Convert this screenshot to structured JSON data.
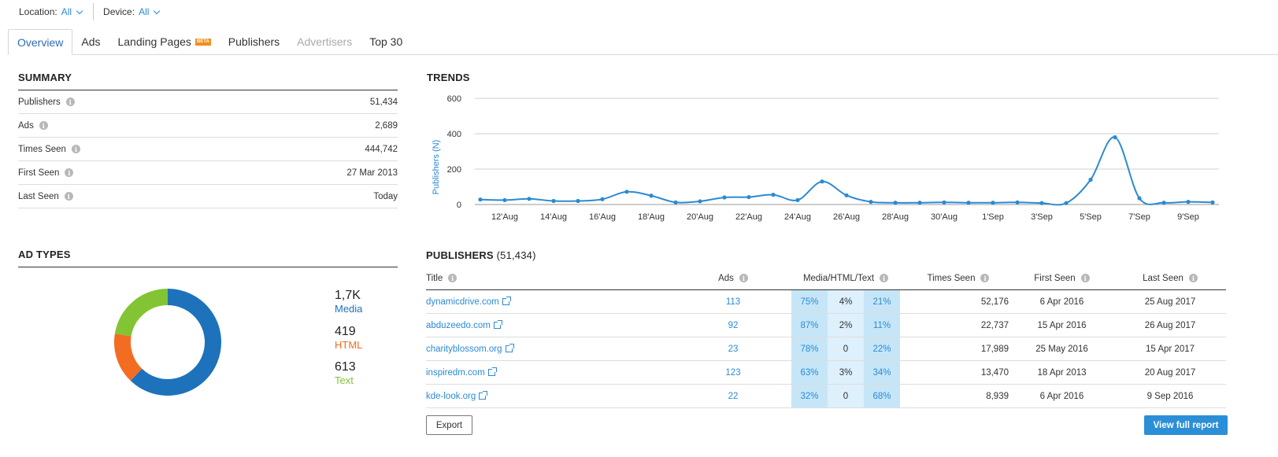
{
  "filters": {
    "location_label": "Location:",
    "location_value": "All",
    "device_label": "Device:",
    "device_value": "All"
  },
  "tabs": [
    {
      "label": "Overview",
      "state": "active"
    },
    {
      "label": "Ads",
      "state": "normal"
    },
    {
      "label": "Landing Pages",
      "badge": "BETA",
      "state": "normal"
    },
    {
      "label": "Publishers",
      "state": "normal"
    },
    {
      "label": "Advertisers",
      "state": "disabled"
    },
    {
      "label": "Top 30",
      "state": "normal"
    }
  ],
  "summary": {
    "title": "SUMMARY",
    "rows": [
      {
        "label": "Publishers",
        "value": "51,434"
      },
      {
        "label": "Ads",
        "value": "2,689"
      },
      {
        "label": "Times Seen",
        "value": "444,742"
      },
      {
        "label": "First Seen",
        "value": "27 Mar 2013"
      },
      {
        "label": "Last Seen",
        "value": "Today"
      }
    ]
  },
  "trends": {
    "title": "TRENDS"
  },
  "chart_data": {
    "type": "line",
    "ylabel": "Publishers (N)",
    "ylim": [
      0,
      600
    ],
    "yticks": [
      0,
      200,
      400,
      600
    ],
    "xticks": [
      "12'Aug",
      "14'Aug",
      "16'Aug",
      "18'Aug",
      "20'Aug",
      "22'Aug",
      "24'Aug",
      "26'Aug",
      "28'Aug",
      "30'Aug",
      "1'Sep",
      "3'Sep",
      "5'Sep",
      "7'Sep",
      "9'Sep"
    ],
    "x": [
      "11 Aug",
      "12 Aug",
      "13 Aug",
      "14 Aug",
      "15 Aug",
      "16 Aug",
      "17 Aug",
      "18 Aug",
      "19 Aug",
      "20 Aug",
      "21 Aug",
      "22 Aug",
      "23 Aug",
      "24 Aug",
      "25 Aug",
      "26 Aug",
      "27 Aug",
      "28 Aug",
      "29 Aug",
      "30 Aug",
      "31 Aug",
      "1 Sep",
      "2 Sep",
      "3 Sep",
      "4 Sep",
      "5 Sep",
      "6 Sep",
      "7 Sep",
      "8 Sep",
      "9 Sep",
      "10 Sep"
    ],
    "series": [
      {
        "values": [
          28,
          25,
          32,
          20,
          20,
          30,
          72,
          50,
          12,
          18,
          40,
          42,
          55,
          25,
          130,
          52,
          15,
          10,
          10,
          12,
          10,
          10,
          12,
          8,
          8,
          140,
          380,
          35,
          10,
          15,
          12
        ]
      }
    ],
    "grid": true,
    "color": "#2b8ad3"
  },
  "ad_types": {
    "title": "AD TYPES",
    "items": [
      {
        "value": "1,7K",
        "label": "Media",
        "color": "#1d72bb",
        "count": 1700
      },
      {
        "value": "419",
        "label": "HTML",
        "color": "#f26c22",
        "count": 419
      },
      {
        "value": "613",
        "label": "Text",
        "color": "#82c434",
        "count": 613
      }
    ]
  },
  "publishers": {
    "title": "PUBLISHERS",
    "count": "(51,434)",
    "columns": {
      "title": "Title",
      "ads": "Ads",
      "mix": "Media/HTML/Text",
      "times_seen": "Times Seen",
      "first_seen": "First Seen",
      "last_seen": "Last Seen"
    },
    "rows": [
      {
        "title": "dynamicdrive.com",
        "ads": "113",
        "media": "75%",
        "html": "4%",
        "text": "21%",
        "times_seen": "52,176",
        "first_seen": "6 Apr 2016",
        "last_seen": "25 Aug 2017"
      },
      {
        "title": "abduzeedo.com",
        "ads": "92",
        "media": "87%",
        "html": "2%",
        "text": "11%",
        "times_seen": "22,737",
        "first_seen": "15 Apr 2016",
        "last_seen": "26 Aug 2017"
      },
      {
        "title": "charityblossom.org",
        "ads": "23",
        "media": "78%",
        "html": "0",
        "text": "22%",
        "times_seen": "17,989",
        "first_seen": "25 May 2016",
        "last_seen": "15 Apr 2017"
      },
      {
        "title": "inspiredm.com",
        "ads": "123",
        "media": "63%",
        "html": "3%",
        "text": "34%",
        "times_seen": "13,470",
        "first_seen": "18 Apr 2013",
        "last_seen": "20 Aug 2017"
      },
      {
        "title": "kde-look.org",
        "ads": "22",
        "media": "32%",
        "html": "0",
        "text": "68%",
        "times_seen": "8,939",
        "first_seen": "6 Apr 2016",
        "last_seen": "9 Sep 2016"
      }
    ],
    "export_label": "Export",
    "full_report_label": "View full report"
  }
}
